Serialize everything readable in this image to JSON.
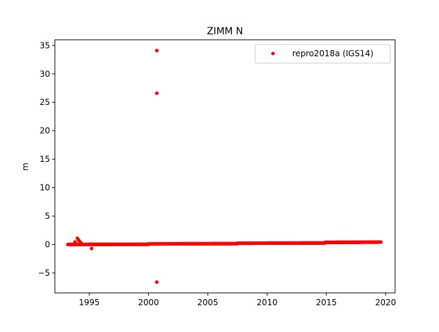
{
  "chart_data": {
    "type": "scatter",
    "title": "ZIMM N",
    "xlabel": "",
    "ylabel": "m",
    "xlim": [
      1992.1,
      2020.8
    ],
    "ylim": [
      -8.5,
      36.0
    ],
    "xticks": [
      1995,
      2000,
      2005,
      2010,
      2015,
      2020
    ],
    "yticks": [
      -5,
      0,
      5,
      10,
      15,
      20,
      25,
      30,
      35
    ],
    "grid": false,
    "legend": {
      "position": "top-right"
    },
    "series": [
      {
        "name": "repro2018a (IGS14)",
        "color": "#ff0000",
        "marker": "dot",
        "segments": [
          {
            "x_start": 1993.2,
            "x_end": 2000.0,
            "y_start": 0.02,
            "y_end": 0.05
          },
          {
            "x_start": 2000.0,
            "x_end": 2007.5,
            "y_start": 0.12,
            "y_end": 0.16
          },
          {
            "x_start": 2007.5,
            "x_end": 2014.9,
            "y_start": 0.24,
            "y_end": 0.28
          },
          {
            "x_start": 2014.9,
            "x_end": 2019.6,
            "y_start": 0.38,
            "y_end": 0.43
          }
        ],
        "outliers": [
          {
            "x": 1993.3,
            "y": 0.05
          },
          {
            "x": 1993.8,
            "y": 0.45
          },
          {
            "x": 1994.0,
            "y": 1.1
          },
          {
            "x": 1994.1,
            "y": 0.8
          },
          {
            "x": 1994.2,
            "y": 0.5
          },
          {
            "x": 1994.3,
            "y": 0.3
          },
          {
            "x": 1995.2,
            "y": -0.7
          },
          {
            "x": 2000.7,
            "y": 34.1
          },
          {
            "x": 2000.7,
            "y": 26.6
          },
          {
            "x": 2000.7,
            "y": -6.6
          }
        ]
      }
    ]
  }
}
